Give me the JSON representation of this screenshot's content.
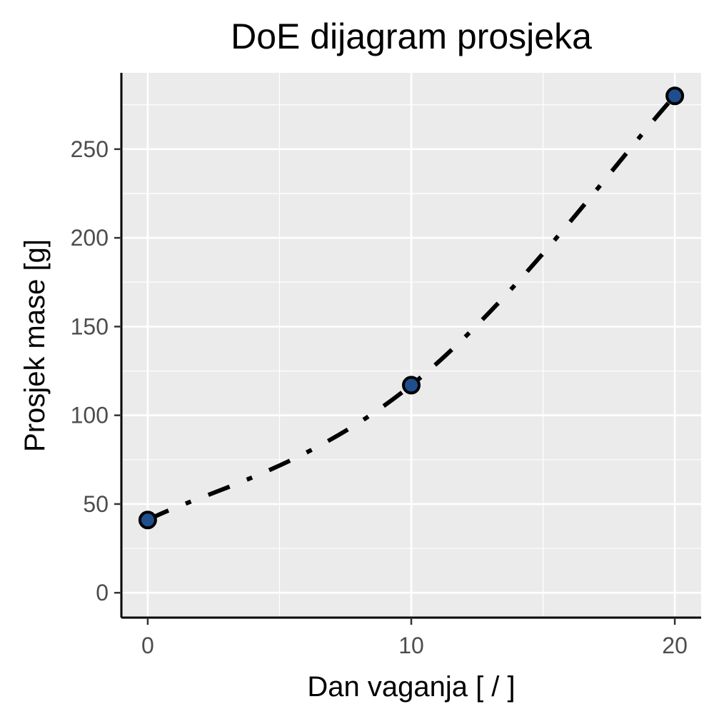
{
  "chart_data": {
    "type": "line",
    "title": "DoE dijagram prosjeka",
    "xlabel": "Dan vaganja [ / ]",
    "ylabel": "Prosjek mase [g]",
    "x": [
      0,
      10,
      20
    ],
    "series": [
      {
        "values": [
          41,
          117,
          280
        ]
      }
    ],
    "xlim": [
      -1,
      21
    ],
    "ylim": [
      -14,
      293
    ],
    "x_ticks": [
      0,
      10,
      20
    ],
    "x_tick_labels": [
      "0",
      "10",
      "20"
    ],
    "y_ticks": [
      0,
      50,
      100,
      150,
      200,
      250
    ],
    "y_tick_labels": [
      "0",
      "50",
      "100",
      "150",
      "200",
      "250"
    ],
    "x_minor_ticks": [
      5,
      15
    ],
    "y_minor_ticks": [
      25,
      75,
      125,
      175,
      225,
      275
    ],
    "grid": true,
    "line_style": "dashdot",
    "colors": {
      "panel": "#ebebeb",
      "grid": "#ffffff",
      "line": "#000000",
      "point_fill": "#1f4e8c",
      "point_stroke": "#000000",
      "axis": "#000000"
    }
  }
}
